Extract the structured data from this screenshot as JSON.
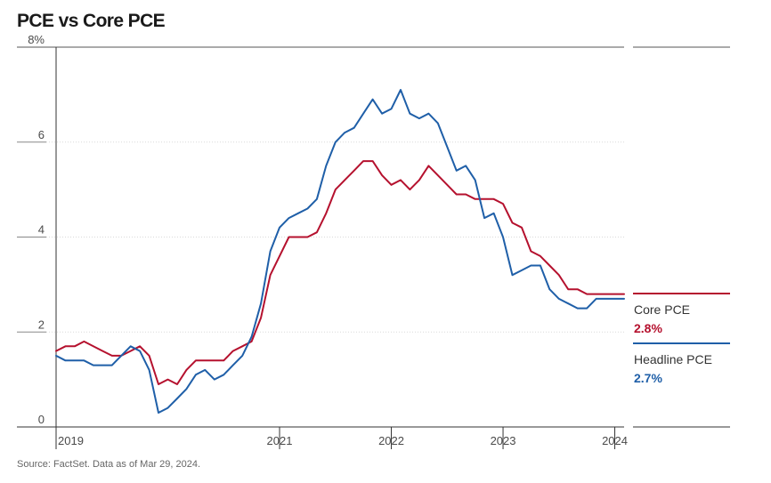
{
  "title": "PCE vs Core PCE",
  "source": "Source: FactSet. Data as of Mar 29, 2024.",
  "chart_data": {
    "type": "line",
    "title": "PCE vs Core PCE",
    "xlabel": "",
    "ylabel": "",
    "ylim": [
      0,
      8
    ],
    "y_ticks": [
      "0",
      "2",
      "4",
      "6",
      "8%"
    ],
    "y_tick_values": [
      0,
      2,
      4,
      6,
      8
    ],
    "x_ticks": [
      "2019",
      "2021",
      "2022",
      "2023",
      "2024"
    ],
    "x_tick_dates": [
      "2019-01",
      "2021-01",
      "2022-01",
      "2023-01",
      "2024-01"
    ],
    "grid": "horizontal dotted",
    "legend": "right",
    "dates": [
      "2019-01",
      "2019-02",
      "2019-03",
      "2019-04",
      "2019-05",
      "2019-06",
      "2019-07",
      "2019-08",
      "2019-09",
      "2019-10",
      "2019-11",
      "2019-12",
      "2020-01",
      "2020-02",
      "2020-03",
      "2020-04",
      "2020-05",
      "2020-06",
      "2020-07",
      "2020-08",
      "2020-09",
      "2020-10",
      "2020-11",
      "2020-12",
      "2021-01",
      "2021-02",
      "2021-03",
      "2021-04",
      "2021-05",
      "2021-06",
      "2021-07",
      "2021-08",
      "2021-09",
      "2021-10",
      "2021-11",
      "2021-12",
      "2022-01",
      "2022-02",
      "2022-03",
      "2022-04",
      "2022-05",
      "2022-06",
      "2022-07",
      "2022-08",
      "2022-09",
      "2022-10",
      "2022-11",
      "2022-12",
      "2023-01",
      "2023-02",
      "2023-03",
      "2023-04",
      "2023-05",
      "2023-06",
      "2023-07",
      "2023-08",
      "2023-09",
      "2023-10",
      "2023-11",
      "2023-12",
      "2024-01",
      "2024-02"
    ],
    "series": [
      {
        "name": "Core PCE",
        "latest": "2.8%",
        "color": "#b5112e",
        "values": [
          1.6,
          1.7,
          1.7,
          1.8,
          1.7,
          1.6,
          1.5,
          1.5,
          1.6,
          1.7,
          1.5,
          0.9,
          1.0,
          0.9,
          1.2,
          1.4,
          1.4,
          1.4,
          1.4,
          1.6,
          1.7,
          1.8,
          2.3,
          3.2,
          3.6,
          4.0,
          4.0,
          4.0,
          4.1,
          4.5,
          5.0,
          5.2,
          5.4,
          5.6,
          5.6,
          5.3,
          5.1,
          5.2,
          5.0,
          5.2,
          5.5,
          5.3,
          5.1,
          4.9,
          4.9,
          4.8,
          4.8,
          4.8,
          4.7,
          4.3,
          4.2,
          3.7,
          3.6,
          3.4,
          3.2,
          2.9,
          2.9,
          2.8,
          2.8,
          2.8,
          2.8,
          2.8
        ]
      },
      {
        "name": "Headline PCE",
        "latest": "2.7%",
        "color": "#1f5fa8",
        "values": [
          1.5,
          1.4,
          1.4,
          1.4,
          1.3,
          1.3,
          1.3,
          1.5,
          1.7,
          1.6,
          1.2,
          0.3,
          0.4,
          0.6,
          0.8,
          1.1,
          1.2,
          1.0,
          1.1,
          1.3,
          1.5,
          1.9,
          2.6,
          3.7,
          4.2,
          4.4,
          4.5,
          4.6,
          4.8,
          5.5,
          6.0,
          6.2,
          6.3,
          6.6,
          6.9,
          6.6,
          6.7,
          7.1,
          6.6,
          6.5,
          6.6,
          6.4,
          5.9,
          5.4,
          5.5,
          5.2,
          4.4,
          4.5,
          4.0,
          3.2,
          3.3,
          3.4,
          3.4,
          2.9,
          2.7,
          2.6,
          2.5,
          2.5,
          2.7,
          2.7,
          2.7,
          2.7
        ]
      }
    ]
  }
}
